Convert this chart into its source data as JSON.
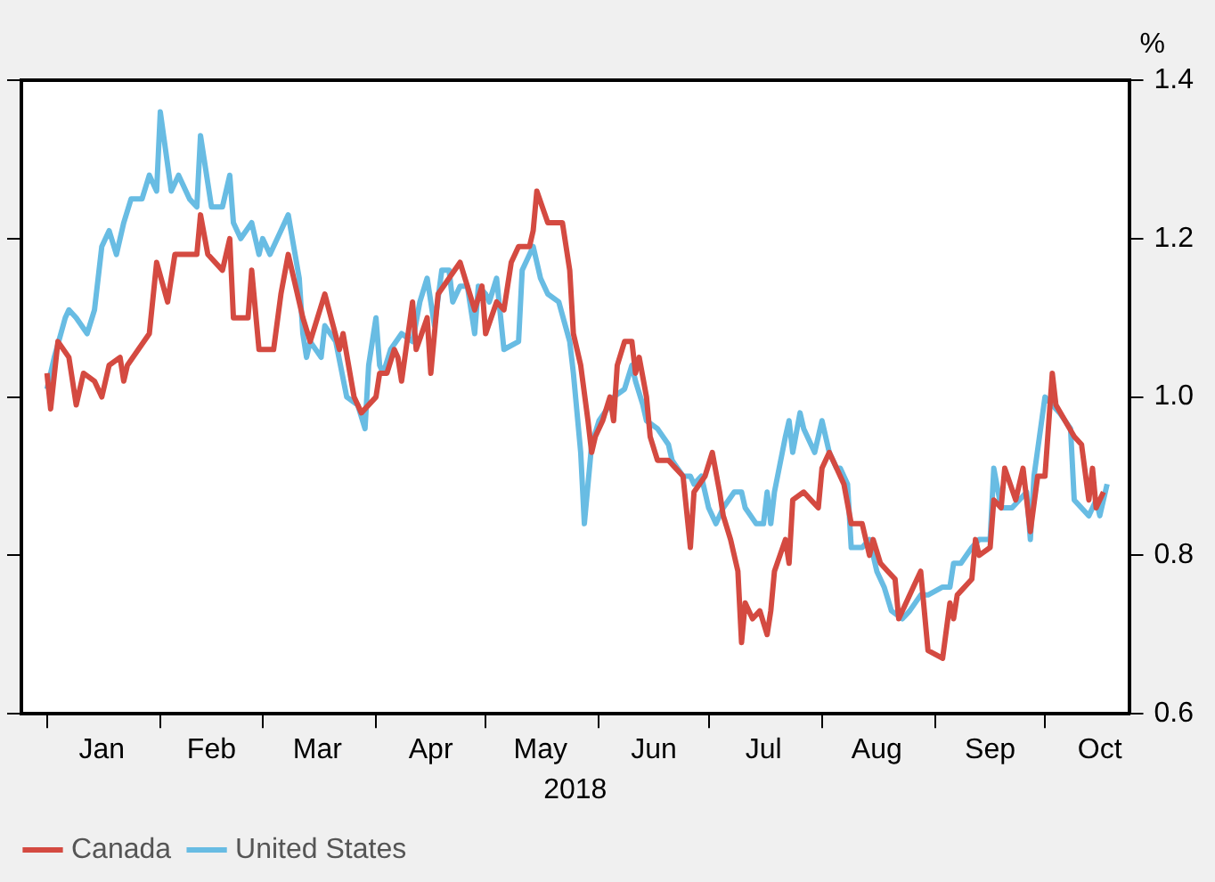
{
  "chart_data": {
    "type": "line",
    "ylabel": "%",
    "xlabel": "2018",
    "xlim": [
      "2017-12-25",
      "2018-10-24"
    ],
    "xticks": [
      {
        "value": "2018-01-01",
        "label": null
      },
      {
        "value": "2018-01-16",
        "label": "Jan"
      },
      {
        "value": "2018-02-01",
        "label": null
      },
      {
        "value": "2018-02-15",
        "label": "Feb"
      },
      {
        "value": "2018-03-01",
        "label": null
      },
      {
        "value": "2018-03-16",
        "label": "Mar"
      },
      {
        "value": "2018-04-01",
        "label": null
      },
      {
        "value": "2018-04-16",
        "label": "Apr"
      },
      {
        "value": "2018-05-01",
        "label": null
      },
      {
        "value": "2018-05-16",
        "label": "May"
      },
      {
        "value": "2018-06-01",
        "label": null
      },
      {
        "value": "2018-06-16",
        "label": "Jun"
      },
      {
        "value": "2018-07-01",
        "label": null
      },
      {
        "value": "2018-07-16",
        "label": "Jul"
      },
      {
        "value": "2018-08-01",
        "label": null
      },
      {
        "value": "2018-08-16",
        "label": "Aug"
      },
      {
        "value": "2018-09-01",
        "label": null
      },
      {
        "value": "2018-09-16",
        "label": "Sep"
      },
      {
        "value": "2018-10-01",
        "label": null
      },
      {
        "value": "2018-10-16",
        "label": "Oct"
      }
    ],
    "ylim": [
      0.6,
      1.4
    ],
    "yticks": [
      0.6,
      0.8,
      {
        "value": 1,
        "label": "1.0"
      },
      1.2,
      1.4
    ],
    "legend": "bottom left",
    "marker": "none",
    "line_style": "solid",
    "series": [
      {
        "name": "Canada",
        "color": "#d44a41",
        "x": [
          "2018-01-01",
          "2018-01-02",
          "2018-01-04",
          "2018-01-07",
          "2018-01-09",
          "2018-01-11",
          "2018-01-14",
          "2018-01-16",
          "2018-01-18",
          "2018-01-21",
          "2018-01-22",
          "2018-01-23",
          "2018-01-26",
          "2018-01-29",
          "2018-01-31",
          "2018-02-03",
          "2018-02-05",
          "2018-02-11",
          "2018-02-12",
          "2018-02-14",
          "2018-02-18",
          "2018-02-20",
          "2018-02-21",
          "2018-02-25",
          "2018-02-26",
          "2018-02-28",
          "2018-03-04",
          "2018-03-06",
          "2018-03-08",
          "2018-03-12",
          "2018-03-14",
          "2018-03-18",
          "2018-03-22",
          "2018-03-23",
          "2018-03-26",
          "2018-03-28",
          "2018-04-01",
          "2018-04-02",
          "2018-04-04",
          "2018-04-06",
          "2018-04-07",
          "2018-04-08",
          "2018-04-11",
          "2018-04-12",
          "2018-04-15",
          "2018-04-16",
          "2018-04-18",
          "2018-04-21",
          "2018-04-24",
          "2018-04-26",
          "2018-04-28",
          "2018-04-30",
          "2018-05-01",
          "2018-05-04",
          "2018-05-06",
          "2018-05-08",
          "2018-05-10",
          "2018-05-13",
          "2018-05-14",
          "2018-05-15",
          "2018-05-18",
          "2018-05-22",
          "2018-05-24",
          "2018-05-25",
          "2018-05-27",
          "2018-05-29",
          "2018-05-30",
          "2018-05-31",
          "2018-06-02",
          "2018-06-04",
          "2018-06-05",
          "2018-06-06",
          "2018-06-08",
          "2018-06-10",
          "2018-06-11",
          "2018-06-12",
          "2018-06-14",
          "2018-06-15",
          "2018-06-17",
          "2018-06-20",
          "2018-06-22",
          "2018-06-24",
          "2018-06-26",
          "2018-06-27",
          "2018-06-30",
          "2018-07-02",
          "2018-07-04",
          "2018-07-05",
          "2018-07-07",
          "2018-07-09",
          "2018-07-10",
          "2018-07-11",
          "2018-07-13",
          "2018-07-15",
          "2018-07-17",
          "2018-07-18",
          "2018-07-19",
          "2018-07-22",
          "2018-07-23",
          "2018-07-24",
          "2018-07-27",
          "2018-07-29",
          "2018-07-31",
          "2018-08-01",
          "2018-08-03",
          "2018-08-05",
          "2018-08-07",
          "2018-08-09",
          "2018-08-12",
          "2018-08-14",
          "2018-08-15",
          "2018-08-17",
          "2018-08-19",
          "2018-08-21",
          "2018-08-22",
          "2018-08-27",
          "2018-08-28",
          "2018-08-30",
          "2018-09-03",
          "2018-09-05",
          "2018-09-06",
          "2018-09-07",
          "2018-09-11",
          "2018-09-12",
          "2018-09-13",
          "2018-09-16",
          "2018-09-17",
          "2018-09-19",
          "2018-09-20",
          "2018-09-23",
          "2018-09-25",
          "2018-09-27",
          "2018-09-29",
          "2018-10-01",
          "2018-10-03",
          "2018-10-04",
          "2018-10-09",
          "2018-10-11",
          "2018-10-13",
          "2018-10-14",
          "2018-10-15",
          "2018-10-17"
        ],
        "values": [
          1.03,
          0.985,
          1.07,
          1.05,
          0.99,
          1.03,
          1.02,
          1.0,
          1.04,
          1.05,
          1.02,
          1.04,
          1.06,
          1.08,
          1.17,
          1.12,
          1.18,
          1.18,
          1.23,
          1.18,
          1.16,
          1.2,
          1.1,
          1.1,
          1.16,
          1.06,
          1.06,
          1.13,
          1.18,
          1.1,
          1.07,
          1.13,
          1.06,
          1.08,
          1.0,
          0.98,
          1.0,
          1.03,
          1.03,
          1.06,
          1.05,
          1.02,
          1.12,
          1.06,
          1.1,
          1.03,
          1.13,
          1.15,
          1.17,
          1.14,
          1.11,
          1.14,
          1.08,
          1.12,
          1.11,
          1.17,
          1.19,
          1.19,
          1.21,
          1.26,
          1.22,
          1.22,
          1.16,
          1.08,
          1.04,
          0.97,
          0.93,
          0.95,
          0.97,
          1.0,
          0.97,
          1.04,
          1.07,
          1.07,
          1.03,
          1.05,
          1.0,
          0.95,
          0.92,
          0.92,
          0.91,
          0.9,
          0.81,
          0.88,
          0.9,
          0.93,
          0.88,
          0.85,
          0.82,
          0.78,
          0.69,
          0.74,
          0.72,
          0.73,
          0.7,
          0.73,
          0.78,
          0.82,
          0.79,
          0.87,
          0.88,
          0.87,
          0.86,
          0.91,
          0.93,
          0.91,
          0.89,
          0.84,
          0.84,
          0.8,
          0.82,
          0.79,
          0.78,
          0.77,
          0.72,
          0.77,
          0.78,
          0.68,
          0.67,
          0.74,
          0.72,
          0.75,
          0.77,
          0.82,
          0.8,
          0.81,
          0.87,
          0.86,
          0.91,
          0.87,
          0.91,
          0.83,
          0.9,
          0.9,
          1.03,
          0.99,
          0.95,
          0.94,
          0.87,
          0.91,
          0.86,
          0.88
        ]
      },
      {
        "name": "United States",
        "color": "#68bce3",
        "x": [
          "2018-01-01",
          "2018-01-03",
          "2018-01-06",
          "2018-01-07",
          "2018-01-09",
          "2018-01-12",
          "2018-01-14",
          "2018-01-16",
          "2018-01-18",
          "2018-01-20",
          "2018-01-22",
          "2018-01-24",
          "2018-01-27",
          "2018-01-29",
          "2018-01-31",
          "2018-02-01",
          "2018-02-04",
          "2018-02-06",
          "2018-02-09",
          "2018-02-11",
          "2018-02-12",
          "2018-02-15",
          "2018-02-18",
          "2018-02-20",
          "2018-02-21",
          "2018-02-23",
          "2018-02-26",
          "2018-02-28",
          "2018-03-01",
          "2018-03-03",
          "2018-03-05",
          "2018-03-08",
          "2018-03-11",
          "2018-03-12",
          "2018-03-13",
          "2018-03-14",
          "2018-03-17",
          "2018-03-18",
          "2018-03-21",
          "2018-03-24",
          "2018-03-27",
          "2018-03-29",
          "2018-03-30",
          "2018-04-01",
          "2018-04-02",
          "2018-04-03",
          "2018-04-05",
          "2018-04-08",
          "2018-04-11",
          "2018-04-13",
          "2018-04-15",
          "2018-04-17",
          "2018-04-19",
          "2018-04-21",
          "2018-04-22",
          "2018-04-24",
          "2018-04-26",
          "2018-04-28",
          "2018-04-29",
          "2018-05-01",
          "2018-05-02",
          "2018-05-04",
          "2018-05-06",
          "2018-05-10",
          "2018-05-11",
          "2018-05-14",
          "2018-05-16",
          "2018-05-18",
          "2018-05-21",
          "2018-05-24",
          "2018-05-25",
          "2018-05-27",
          "2018-05-28",
          "2018-05-30",
          "2018-06-01",
          "2018-06-04",
          "2018-06-05",
          "2018-06-08",
          "2018-06-10",
          "2018-06-11",
          "2018-06-13",
          "2018-06-14",
          "2018-06-17",
          "2018-06-20",
          "2018-06-21",
          "2018-06-24",
          "2018-06-26",
          "2018-06-27",
          "2018-06-29",
          "2018-07-01",
          "2018-07-03",
          "2018-07-05",
          "2018-07-08",
          "2018-07-10",
          "2018-07-11",
          "2018-07-14",
          "2018-07-16",
          "2018-07-17",
          "2018-07-18",
          "2018-07-19",
          "2018-07-22",
          "2018-07-23",
          "2018-07-24",
          "2018-07-26",
          "2018-07-27",
          "2018-07-30",
          "2018-08-01",
          "2018-08-03",
          "2018-08-05",
          "2018-08-06",
          "2018-08-08",
          "2018-08-09",
          "2018-08-12",
          "2018-08-14",
          "2018-08-16",
          "2018-08-18",
          "2018-08-20",
          "2018-08-23",
          "2018-08-25",
          "2018-08-28",
          "2018-08-30",
          "2018-09-03",
          "2018-09-05",
          "2018-09-06",
          "2018-09-08",
          "2018-09-11",
          "2018-09-13",
          "2018-09-16",
          "2018-09-17",
          "2018-09-19",
          "2018-09-22",
          "2018-09-26",
          "2018-09-27",
          "2018-09-28",
          "2018-10-01",
          "2018-10-05",
          "2018-10-08",
          "2018-10-09",
          "2018-10-13",
          "2018-10-15",
          "2018-10-16",
          "2018-10-18"
        ],
        "values": [
          1.01,
          1.05,
          1.1,
          1.11,
          1.1,
          1.08,
          1.11,
          1.19,
          1.21,
          1.18,
          1.22,
          1.25,
          1.25,
          1.28,
          1.26,
          1.36,
          1.26,
          1.28,
          1.25,
          1.24,
          1.33,
          1.24,
          1.24,
          1.28,
          1.22,
          1.2,
          1.22,
          1.18,
          1.2,
          1.18,
          1.2,
          1.23,
          1.15,
          1.08,
          1.05,
          1.07,
          1.05,
          1.09,
          1.07,
          1.0,
          0.99,
          0.96,
          1.04,
          1.1,
          1.04,
          1.03,
          1.06,
          1.08,
          1.07,
          1.12,
          1.15,
          1.09,
          1.16,
          1.16,
          1.12,
          1.14,
          1.14,
          1.08,
          1.14,
          1.13,
          1.12,
          1.15,
          1.06,
          1.07,
          1.16,
          1.19,
          1.15,
          1.13,
          1.12,
          1.07,
          1.03,
          0.93,
          0.84,
          0.94,
          0.97,
          0.99,
          1.0,
          1.01,
          1.04,
          1.02,
          0.99,
          0.97,
          0.96,
          0.94,
          0.92,
          0.9,
          0.9,
          0.89,
          0.9,
          0.86,
          0.84,
          0.86,
          0.88,
          0.88,
          0.86,
          0.84,
          0.84,
          0.88,
          0.84,
          0.88,
          0.95,
          0.97,
          0.93,
          0.98,
          0.96,
          0.93,
          0.97,
          0.93,
          0.91,
          0.91,
          0.89,
          0.81,
          0.81,
          0.82,
          0.78,
          0.76,
          0.73,
          0.72,
          0.73,
          0.75,
          0.75,
          0.76,
          0.76,
          0.79,
          0.79,
          0.81,
          0.82,
          0.82,
          0.91,
          0.86,
          0.86,
          0.88,
          0.82,
          0.9,
          1.0,
          0.98,
          0.96,
          0.87,
          0.85,
          0.87,
          0.85,
          0.89
        ]
      }
    ]
  }
}
